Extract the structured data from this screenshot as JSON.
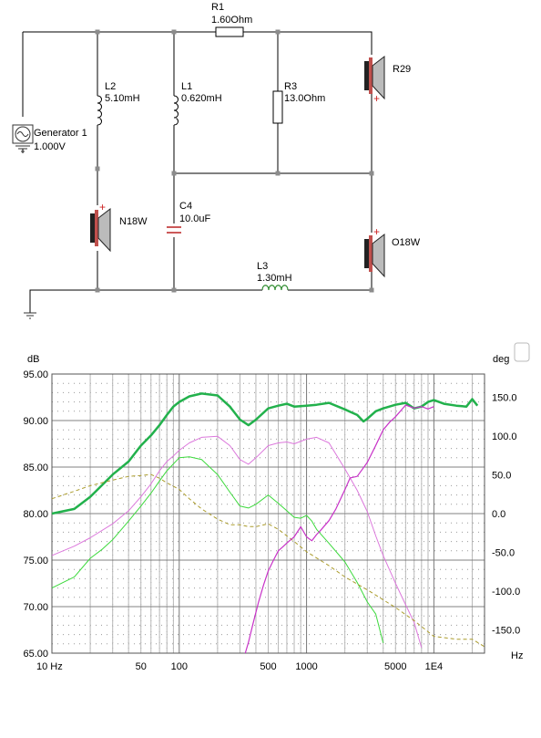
{
  "schematic": {
    "components": {
      "generator": {
        "name": "Generator 1",
        "value": "1.000V"
      },
      "r1": {
        "name": "R1",
        "value": "1.60Ohm"
      },
      "l2": {
        "name": "L2",
        "value": "5.10mH"
      },
      "l1": {
        "name": "L1",
        "value": "0.620mH"
      },
      "r3": {
        "name": "R3",
        "value": "13.0Ohm"
      },
      "c4": {
        "name": "C4",
        "value": "10.0uF"
      },
      "l3": {
        "name": "L3",
        "value": "1.30mH"
      },
      "spk_r29": {
        "name": "R29"
      },
      "spk_n18w": {
        "name": "N18W"
      },
      "spk_o18w": {
        "name": "O18W"
      }
    },
    "polarity": {
      "plus": "+"
    }
  },
  "chart_data": {
    "type": "line",
    "xlabel": "Hz",
    "ylabel": "dB",
    "y2label": "deg",
    "x_scale": "log",
    "xlim": [
      10,
      25000
    ],
    "ylim": [
      65,
      95
    ],
    "y2lim": [
      -180,
      180
    ],
    "x_tick_labels": [
      "10 Hz",
      "50",
      "100",
      "500",
      "1000",
      "5000",
      "1E4"
    ],
    "x_tick_values": [
      10,
      50,
      100,
      500,
      1000,
      5000,
      10000
    ],
    "y_tick_labels": [
      "95.00",
      "90.00",
      "85.00",
      "80.00",
      "75.00",
      "70.00",
      "65.00"
    ],
    "y2_tick_labels": [
      "150.0",
      "100.0",
      "50.0",
      "0.0",
      "-50.0",
      "-100.0",
      "-150.0"
    ],
    "y2_tick_values": [
      150,
      100,
      50,
      0,
      -50,
      -100,
      -150
    ],
    "grid": true,
    "series": [
      {
        "axis": "y",
        "color": "#22b14c",
        "width": 2.5,
        "dash": "",
        "x": [
          10,
          15,
          20,
          30,
          40,
          50,
          60,
          70,
          80,
          90,
          100,
          120,
          150,
          200,
          250,
          300,
          350,
          400,
          500,
          600,
          700,
          800,
          1000,
          1200,
          1500,
          2000,
          2500,
          2800,
          3000,
          3500,
          4000,
          5000,
          6000,
          7000,
          8000,
          9000,
          10000,
          12000,
          15000,
          18000,
          20000,
          22000
        ],
        "y": [
          80,
          80.5,
          81.8,
          84.2,
          85.6,
          87.3,
          88.4,
          89.5,
          90.6,
          91.5,
          92,
          92.6,
          92.9,
          92.7,
          91.5,
          90.1,
          89.5,
          90.1,
          91.3,
          91.6,
          91.8,
          91.5,
          91.6,
          91.7,
          91.9,
          91.2,
          90.6,
          89.9,
          90.2,
          91,
          91.3,
          91.7,
          91.9,
          91.3,
          91.5,
          92,
          92.2,
          91.8,
          91.6,
          91.5,
          92.3,
          91.6
        ]
      },
      {
        "axis": "y",
        "color": "#3cd93c",
        "width": 1,
        "dash": "",
        "x": [
          10,
          15,
          20,
          25,
          30,
          40,
          50,
          60,
          70,
          80,
          100,
          120,
          150,
          200,
          250,
          300,
          350,
          400,
          500,
          600,
          700,
          800,
          900,
          1000,
          1100,
          1200,
          1500,
          2000,
          2500,
          3000,
          3500,
          4000
        ],
        "y": [
          72,
          73.2,
          75.2,
          76.2,
          77.2,
          79.2,
          80.8,
          82.2,
          83.5,
          84.6,
          86,
          86.1,
          85.8,
          84.2,
          82.3,
          80.8,
          80.6,
          81,
          82,
          81.1,
          80.3,
          79.6,
          79.5,
          79.8,
          79.2,
          78.3,
          76.8,
          74.8,
          72.6,
          70.5,
          69.2,
          66.1
        ]
      },
      {
        "axis": "y",
        "color": "#dc78dc",
        "width": 1,
        "dash": "",
        "x": [
          10,
          15,
          20,
          30,
          40,
          50,
          60,
          70,
          80,
          90,
          100,
          120,
          150,
          200,
          250,
          300,
          350,
          400,
          500,
          600,
          700,
          800,
          1000,
          1200,
          1500,
          2000,
          2500,
          3000,
          3500,
          4000,
          5000,
          6000,
          7000,
          8000
        ],
        "y": [
          75.5,
          76.5,
          77.4,
          78.9,
          80.3,
          81.8,
          83.2,
          84.6,
          85.6,
          86.2,
          86.8,
          87.6,
          88.2,
          88.3,
          87.3,
          85.8,
          85.3,
          86,
          87.3,
          87.6,
          87.7,
          87.5,
          88,
          88.2,
          87.6,
          84.8,
          82.5,
          80.2,
          77.6,
          75.5,
          72.5,
          70.2,
          68.3,
          65.6
        ]
      },
      {
        "axis": "y",
        "color": "#aa9b2a",
        "width": 1,
        "dash": "4 3",
        "x": [
          10,
          15,
          20,
          30,
          40,
          50,
          60,
          70,
          80,
          100,
          120,
          150,
          200,
          250,
          300,
          350,
          400,
          500,
          600,
          800,
          1000,
          1500,
          2000,
          3000,
          5000,
          7000,
          10000,
          15000,
          20000,
          25000
        ],
        "y": [
          81.6,
          82.4,
          83,
          83.6,
          84,
          84.1,
          84.2,
          83.8,
          83.3,
          82.6,
          81.6,
          80.5,
          79.4,
          78.8,
          78.8,
          78.6,
          78.6,
          78.9,
          78.3,
          77,
          75.9,
          74.4,
          73.2,
          71.8,
          69.9,
          68.5,
          66.8,
          66.5,
          66.5,
          65.7
        ]
      },
      {
        "axis": "y2",
        "color": "#c832c8",
        "width": 1.2,
        "dash": "",
        "x": [
          330,
          350,
          380,
          420,
          460,
          500,
          550,
          600,
          650,
          700,
          800,
          900,
          1000,
          1100,
          1200,
          1300,
          1500,
          1700,
          2000,
          2200,
          2500,
          3000,
          3500,
          4000,
          4500,
          5000,
          6000,
          7000,
          8000,
          9000,
          10000
        ],
        "y": [
          -180,
          -166,
          -142,
          -114,
          -92,
          -74,
          -60,
          -48,
          -43,
          -38,
          -30,
          -17,
          -30,
          -35,
          -27,
          -21,
          -9,
          6,
          31,
          46,
          48,
          66,
          88,
          108,
          118,
          125,
          140,
          136,
          138,
          135,
          138
        ]
      }
    ]
  }
}
